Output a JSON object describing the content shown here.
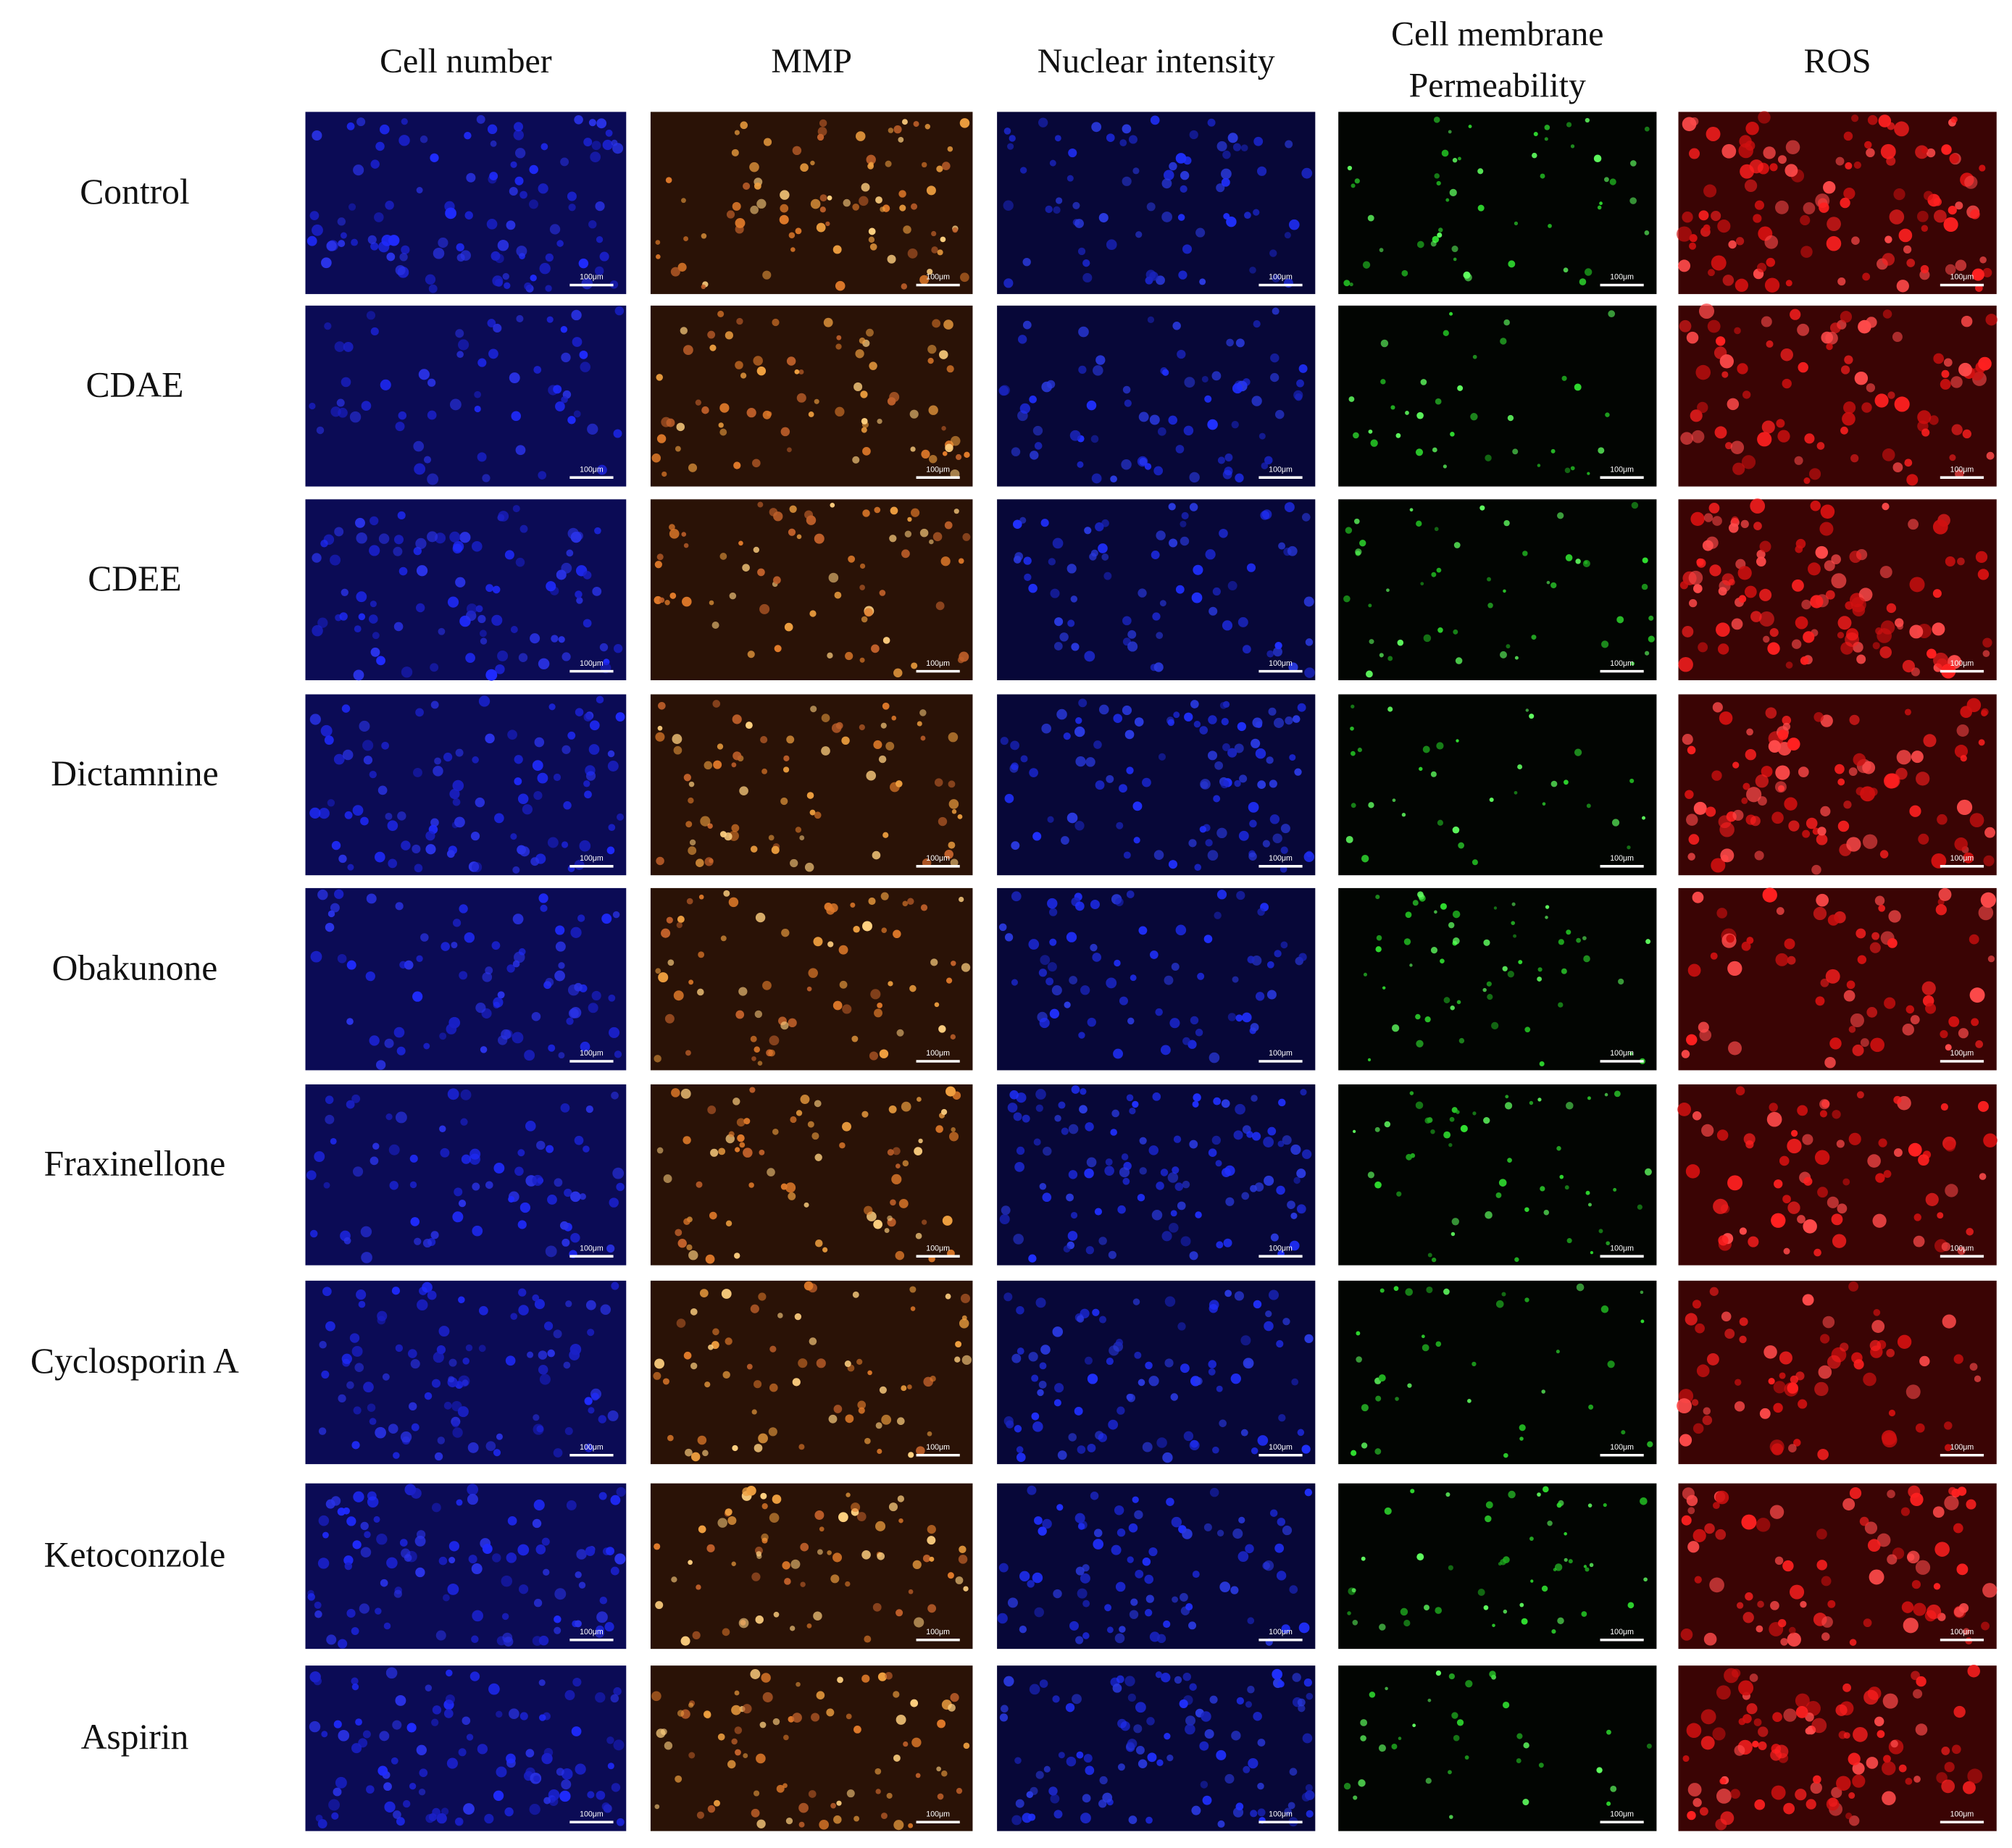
{
  "columns": [
    [
      "Cell number"
    ],
    [
      "MMP"
    ],
    [
      "Nuclear intensity"
    ],
    [
      "Cell membrane",
      "Permeability"
    ],
    [
      "ROS"
    ]
  ],
  "rows": [
    "Control",
    "CDAE",
    "CDEE",
    "Dictamnine",
    "Obakunone",
    "Fraxinellone",
    "Cyclosporin A",
    "Ketoconzole",
    "Aspirin"
  ],
  "scale_bar": "100μm"
}
